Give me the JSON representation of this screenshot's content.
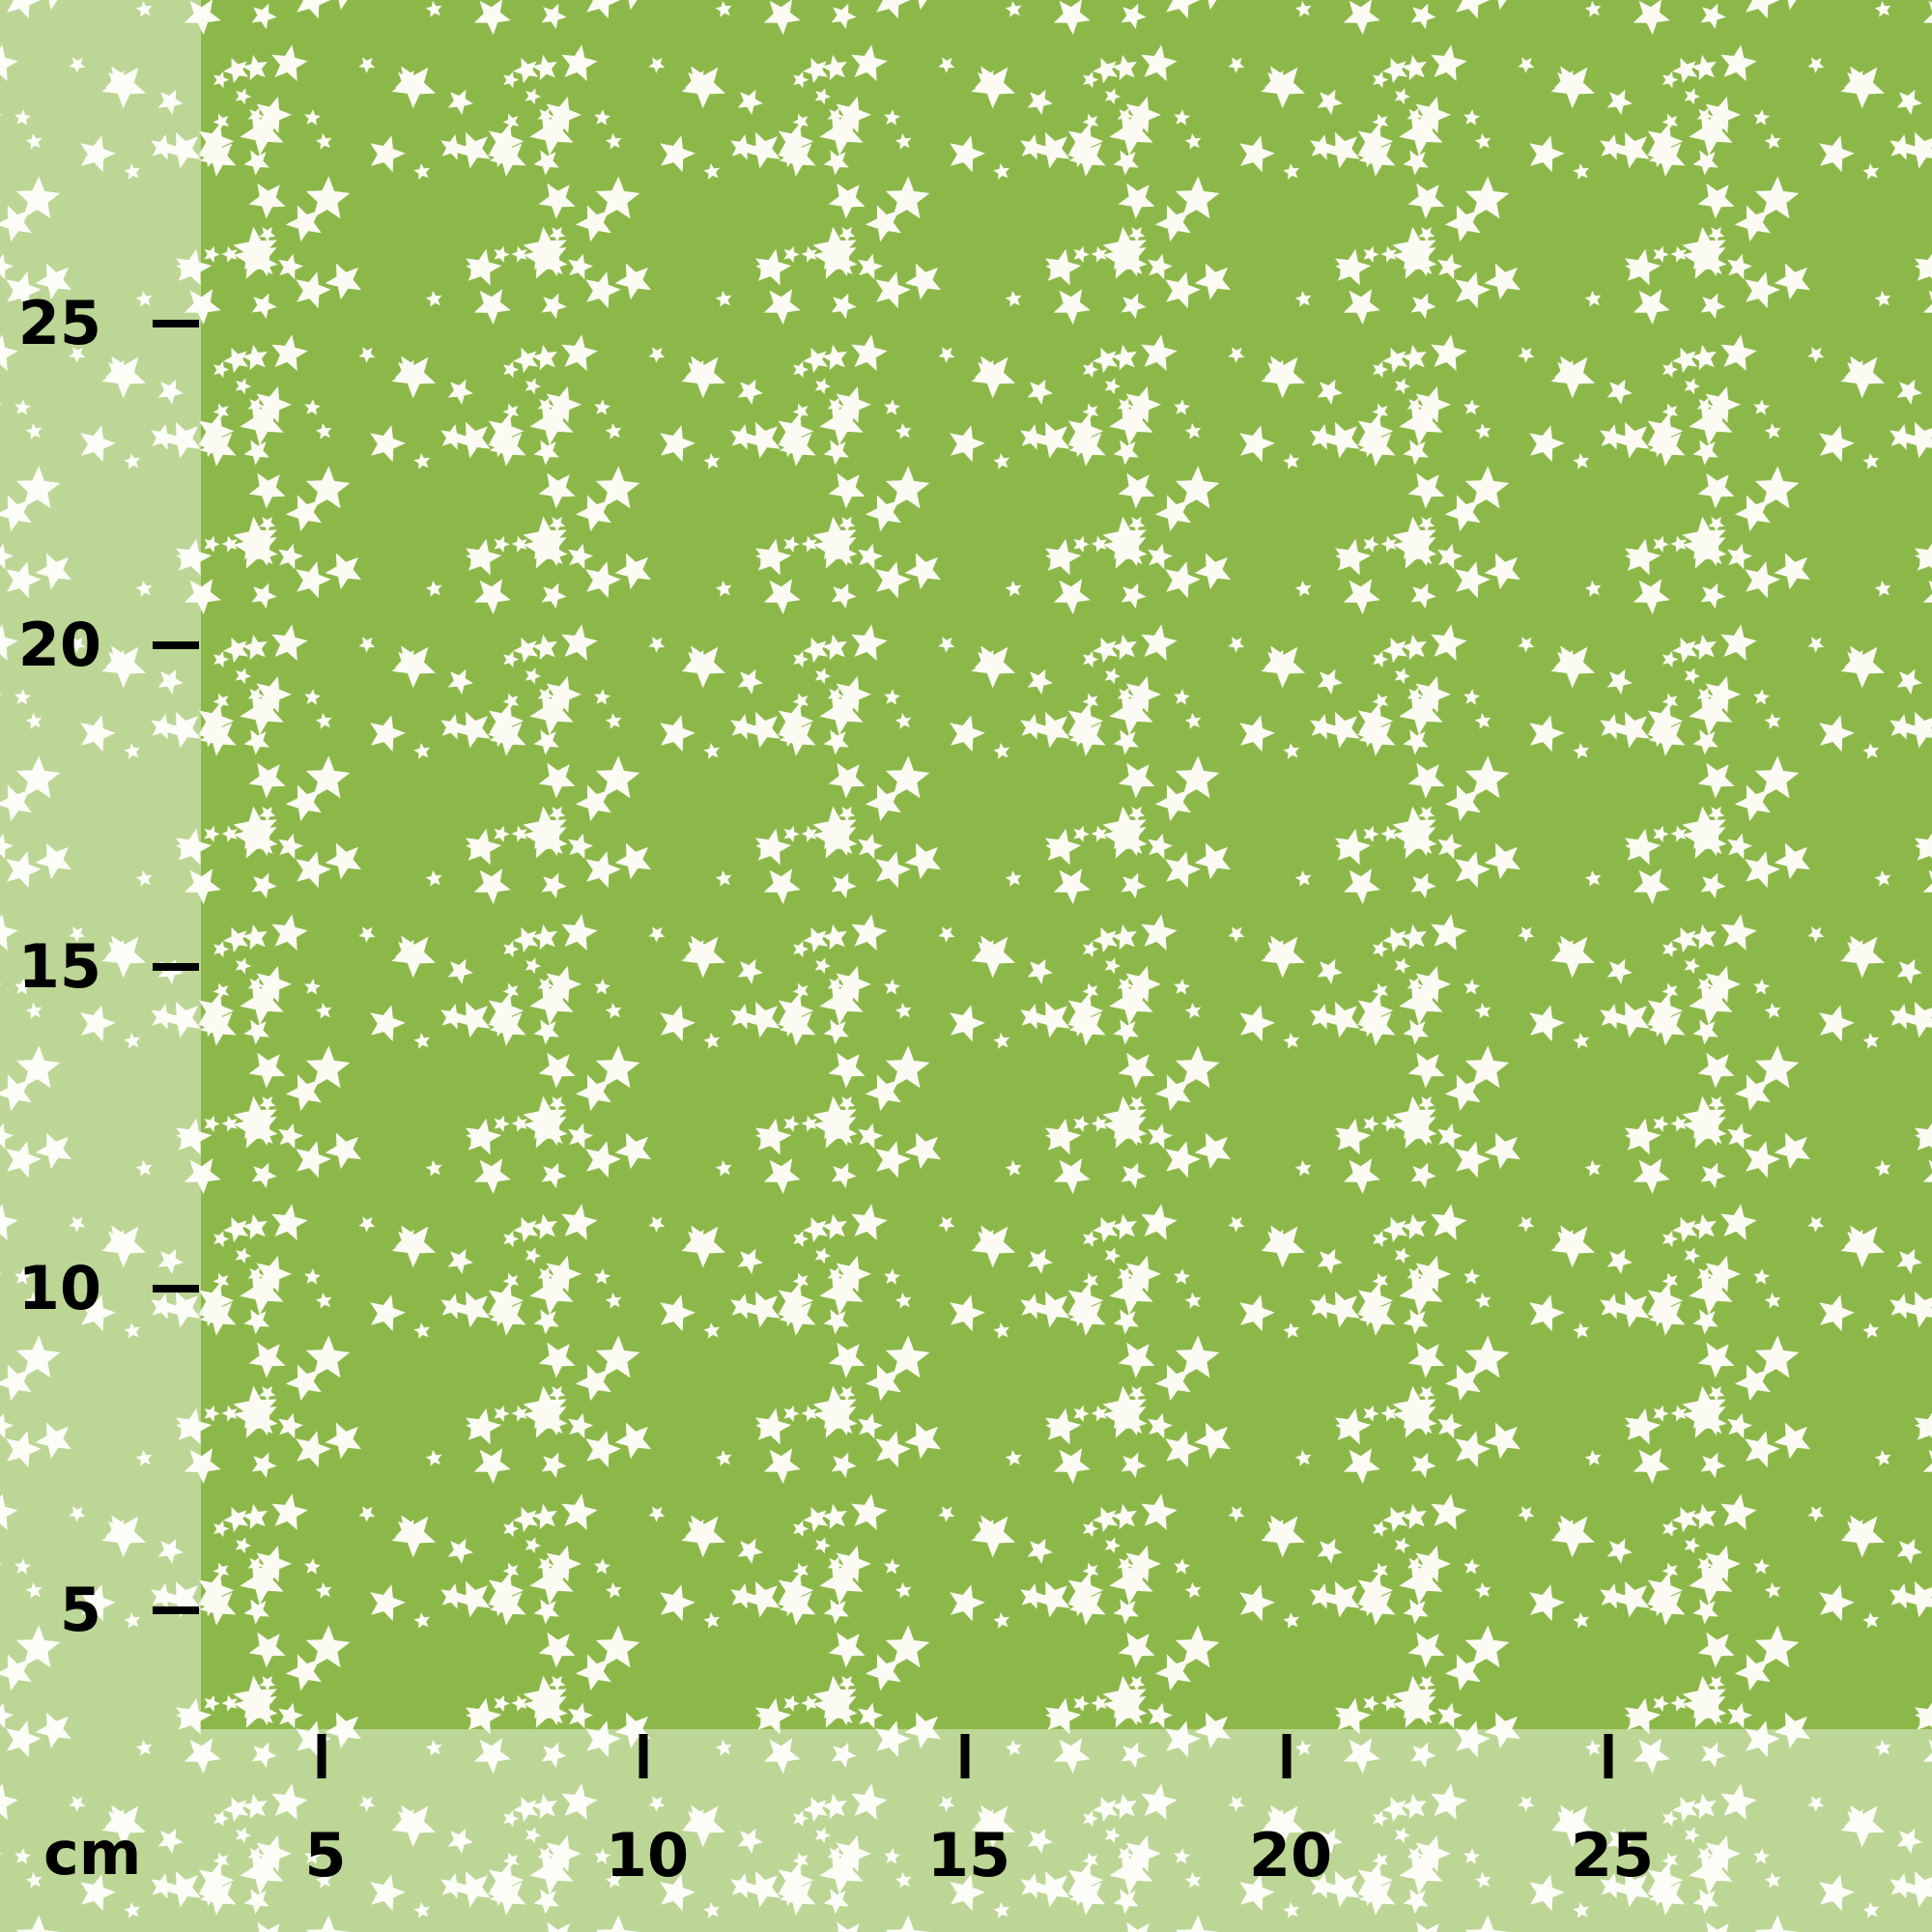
{
  "colors": {
    "fabric": "#8cb84a",
    "stars": "#fbfbf3",
    "scale_text": "#000000"
  },
  "pattern": "white stars on green fabric",
  "scale": {
    "unit": "cm",
    "x_ticks": [
      {
        "value": 5,
        "label": "5"
      },
      {
        "value": 10,
        "label": "10"
      },
      {
        "value": 15,
        "label": "15"
      },
      {
        "value": 20,
        "label": "20"
      },
      {
        "value": 25,
        "label": "25"
      }
    ],
    "y_ticks": [
      {
        "value": 25,
        "label": "25"
      },
      {
        "value": 20,
        "label": "20"
      },
      {
        "value": 15,
        "label": "15"
      },
      {
        "value": 10,
        "label": "10"
      },
      {
        "value": 5,
        "label": "5"
      }
    ]
  }
}
